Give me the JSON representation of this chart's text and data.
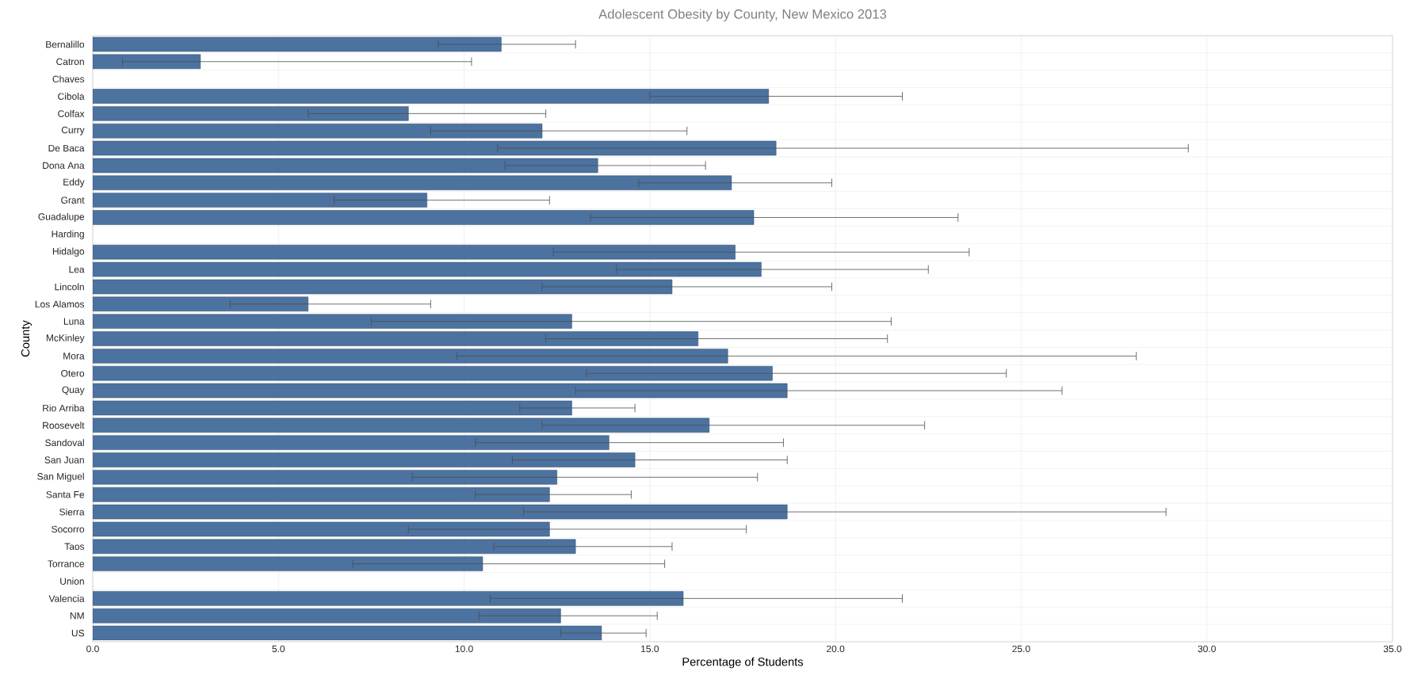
{
  "chart_data": {
    "type": "bar",
    "orientation": "horizontal",
    "title": "Adolescent Obesity by County, New Mexico 2013",
    "xlabel": "Percentage of Students",
    "ylabel": "County",
    "categories": [
      "Bernalillo",
      "Catron",
      "Chaves",
      "Cibola",
      "Colfax",
      "Curry",
      "De Baca",
      "Dona Ana",
      "Eddy",
      "Grant",
      "Guadalupe",
      "Harding",
      "Hidalgo",
      "Lea",
      "Lincoln",
      "Los Alamos",
      "Luna",
      "McKinley",
      "Mora",
      "Otero",
      "Quay",
      "Rio Arriba",
      "Roosevelt",
      "Sandoval",
      "San Juan",
      "San Miguel",
      "Santa Fe",
      "Sierra",
      "Socorro",
      "Taos",
      "Torrance",
      "Union",
      "Valencia",
      "NM",
      "US"
    ],
    "values": [
      11.0,
      2.9,
      null,
      18.2,
      8.5,
      12.1,
      18.4,
      13.6,
      17.2,
      9.0,
      17.8,
      null,
      17.3,
      18.0,
      15.6,
      5.8,
      12.9,
      16.3,
      17.1,
      18.3,
      18.7,
      12.9,
      16.6,
      13.9,
      14.6,
      12.5,
      12.3,
      18.7,
      12.3,
      13.0,
      10.5,
      null,
      15.9,
      12.6,
      13.7
    ],
    "errors": [
      [
        9.3,
        13.0
      ],
      [
        0.8,
        10.2
      ],
      null,
      [
        15.0,
        21.8
      ],
      [
        5.8,
        12.2
      ],
      [
        9.1,
        16.0
      ],
      [
        10.9,
        29.5
      ],
      [
        11.1,
        16.5
      ],
      [
        14.7,
        19.9
      ],
      [
        6.5,
        12.3
      ],
      [
        13.4,
        23.3
      ],
      null,
      [
        12.4,
        23.6
      ],
      [
        14.1,
        22.5
      ],
      [
        12.1,
        19.9
      ],
      [
        3.7,
        9.1
      ],
      [
        7.5,
        21.5
      ],
      [
        12.2,
        21.4
      ],
      [
        9.8,
        28.1
      ],
      [
        13.3,
        24.6
      ],
      [
        13.0,
        26.1
      ],
      [
        11.5,
        14.6
      ],
      [
        12.1,
        22.4
      ],
      [
        10.3,
        18.6
      ],
      [
        11.3,
        18.7
      ],
      [
        8.6,
        17.9
      ],
      [
        10.3,
        14.5
      ],
      [
        11.6,
        28.9
      ],
      [
        8.5,
        17.6
      ],
      [
        10.8,
        15.6
      ],
      [
        7.0,
        15.4
      ],
      null,
      [
        10.7,
        21.8
      ],
      [
        10.4,
        15.2
      ],
      [
        12.6,
        14.9
      ]
    ],
    "color": "#4c72a0",
    "xlim": [
      0,
      35
    ],
    "xticks": [
      {
        "value": 0,
        "label": "0.0"
      },
      {
        "value": 5,
        "label": "5.0"
      },
      {
        "value": 10,
        "label": "10.0"
      },
      {
        "value": 15,
        "label": "15.0"
      },
      {
        "value": 20,
        "label": "20.0"
      },
      {
        "value": 25,
        "label": "25.0"
      },
      {
        "value": 30,
        "label": "30.0"
      },
      {
        "value": 35,
        "label": "35.0"
      }
    ],
    "grid": true
  }
}
